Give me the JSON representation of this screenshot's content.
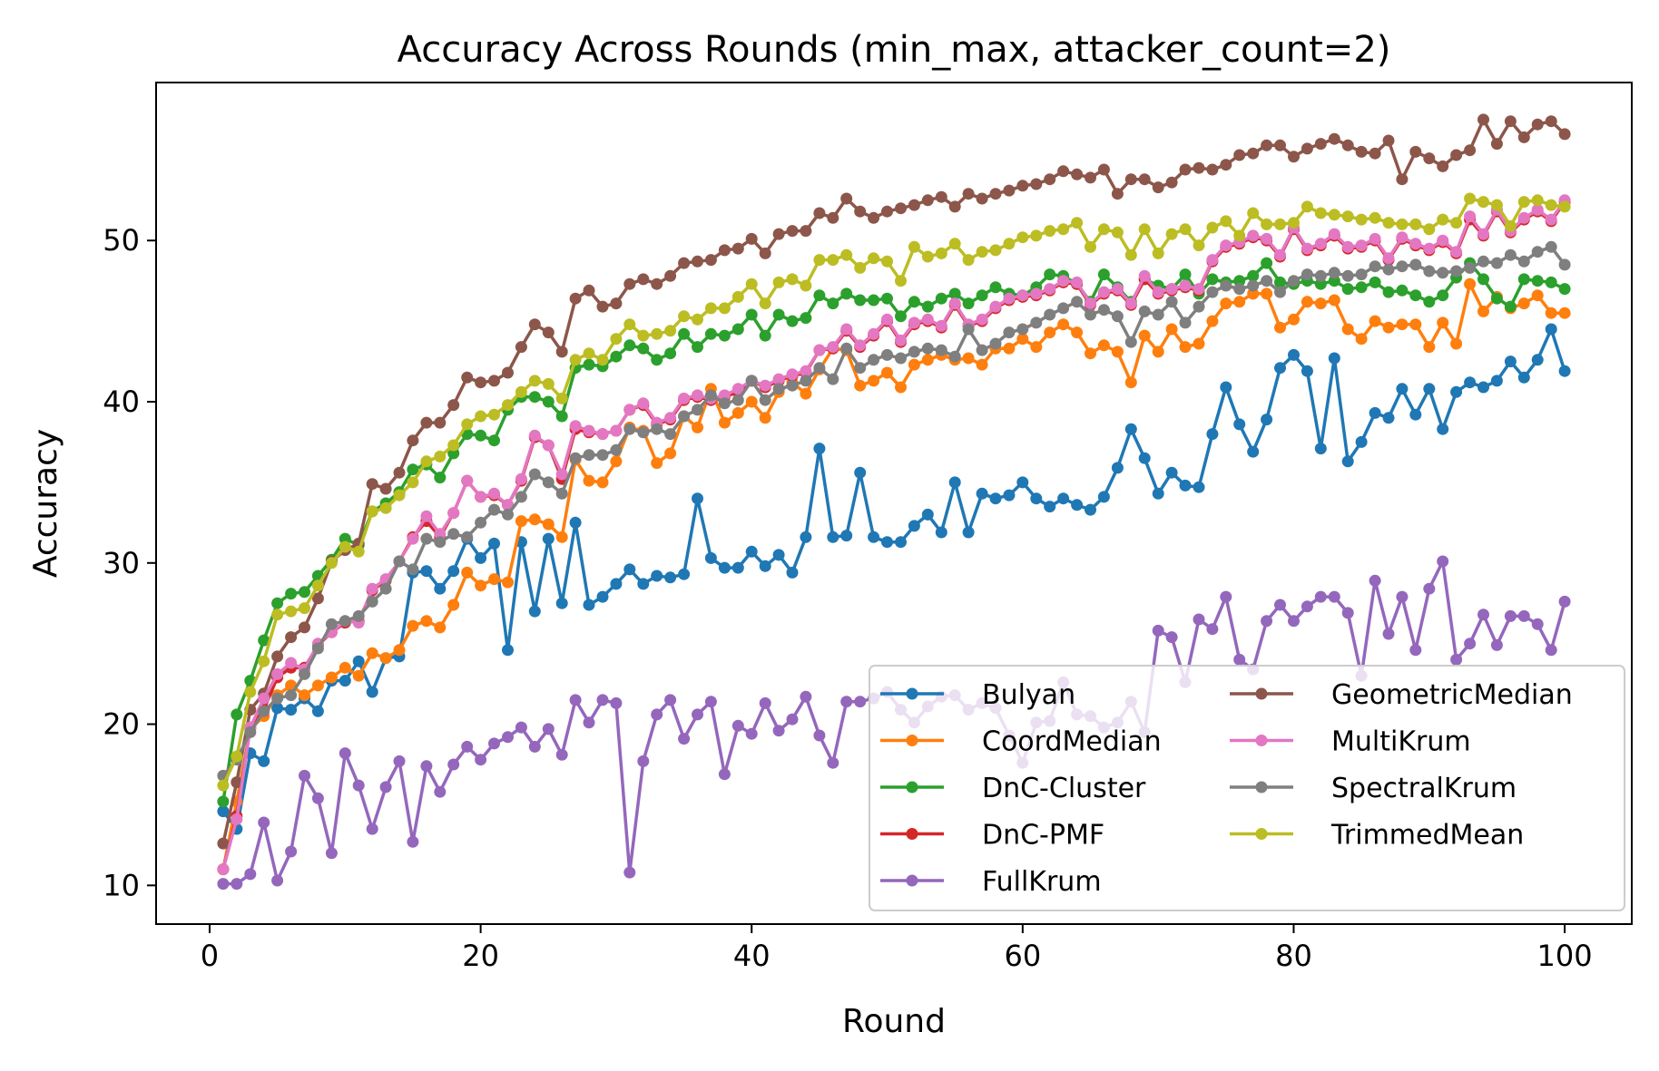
{
  "chart_data": {
    "type": "line",
    "title": "Accuracy Across Rounds (min_max, attacker_count=2)",
    "xlabel": "Round",
    "ylabel": "Accuracy",
    "xlim": [
      -3.95,
      104.95
    ],
    "ylim": [
      7.6,
      59.8
    ],
    "xticks": [
      0,
      20,
      40,
      60,
      80,
      100
    ],
    "yticks": [
      10,
      20,
      30,
      40,
      50
    ],
    "grid": false,
    "legend_position": "lower-right",
    "legend_columns": 2,
    "series": [
      {
        "name": "Bulyan",
        "color": "#1f77b4",
        "values": [
          14.6,
          13.5,
          18.2,
          17.7,
          21.0,
          20.9,
          21.6,
          20.8,
          22.7,
          22.7,
          23.9,
          22.0,
          24.1,
          24.2,
          29.4,
          29.5,
          28.4,
          29.5,
          31.5,
          30.3,
          31.2,
          24.6,
          31.3,
          27.0,
          31.5,
          27.5,
          32.5,
          27.4,
          27.9,
          28.7,
          29.6,
          28.7,
          29.2,
          29.1,
          29.3,
          34.0,
          30.3,
          29.7,
          29.7,
          30.7,
          29.8,
          30.5,
          29.4,
          31.6,
          37.1,
          31.6,
          31.7,
          35.6,
          31.6,
          31.3,
          31.3,
          32.3,
          33.0,
          31.9,
          35.0,
          31.9,
          34.3,
          34.0,
          34.2,
          35.0,
          34.0,
          33.5,
          34.0,
          33.6,
          33.3,
          34.1,
          35.9,
          38.3,
          36.5,
          34.3,
          35.6,
          34.8,
          34.7,
          38.0,
          40.9,
          38.6,
          36.9,
          38.9,
          42.1,
          42.9,
          41.9,
          37.1,
          42.7,
          36.3,
          37.5,
          39.3,
          39.0,
          40.8,
          39.2,
          40.8,
          38.3,
          40.6,
          41.2,
          40.9,
          41.3,
          42.5,
          41.5,
          42.6,
          44.5,
          41.9
        ]
      },
      {
        "name": "CoordMedian",
        "color": "#ff7f0e",
        "values": [
          11.0,
          15.2,
          19.7,
          20.5,
          21.8,
          22.4,
          21.8,
          22.4,
          22.9,
          23.5,
          23.0,
          24.4,
          24.1,
          24.6,
          26.1,
          26.4,
          26.0,
          27.4,
          29.4,
          28.6,
          29.0,
          28.8,
          32.6,
          32.7,
          32.4,
          31.6,
          36.4,
          35.1,
          35.0,
          36.3,
          38.4,
          38.2,
          36.2,
          36.8,
          39.1,
          38.4,
          40.8,
          38.7,
          39.3,
          40.0,
          39.0,
          40.6,
          41.2,
          40.5,
          42.0,
          43.3,
          43.2,
          41.0,
          41.3,
          41.8,
          40.9,
          42.3,
          42.6,
          42.9,
          42.6,
          42.7,
          42.3,
          43.3,
          43.3,
          43.9,
          43.4,
          44.3,
          44.8,
          44.3,
          43.0,
          43.5,
          43.1,
          41.2,
          44.1,
          43.1,
          44.5,
          43.4,
          43.6,
          45.0,
          46.1,
          46.2,
          46.7,
          46.7,
          44.6,
          45.1,
          46.2,
          46.1,
          46.3,
          44.5,
          43.9,
          45.0,
          44.6,
          44.8,
          44.8,
          43.4,
          44.9,
          43.6,
          47.3,
          45.6,
          46.5,
          45.8,
          46.1,
          46.6,
          45.5,
          45.5
        ]
      },
      {
        "name": "DnC-Cluster",
        "color": "#2ca02c",
        "values": [
          15.2,
          20.6,
          22.7,
          25.2,
          27.5,
          28.1,
          28.2,
          29.2,
          30.2,
          31.5,
          31.1,
          33.2,
          33.7,
          34.4,
          35.8,
          36.1,
          35.3,
          36.8,
          38.0,
          37.9,
          37.6,
          39.5,
          40.3,
          40.3,
          40.0,
          39.1,
          42.1,
          42.3,
          42.2,
          42.8,
          43.5,
          43.3,
          42.6,
          43.0,
          44.2,
          43.4,
          44.2,
          44.1,
          44.5,
          45.4,
          44.1,
          45.4,
          45.0,
          45.2,
          46.6,
          46.1,
          46.7,
          46.3,
          46.3,
          46.4,
          45.3,
          46.2,
          45.9,
          46.4,
          46.7,
          46.1,
          46.6,
          47.1,
          46.7,
          46.6,
          47.1,
          47.9,
          47.8,
          47.3,
          46.2,
          47.9,
          47.1,
          46.2,
          47.6,
          47.2,
          47.0,
          47.9,
          46.7,
          47.6,
          47.4,
          47.5,
          47.8,
          48.6,
          47.4,
          47.3,
          47.5,
          47.3,
          47.5,
          47.0,
          47.1,
          47.4,
          46.8,
          46.9,
          46.6,
          46.2,
          46.6,
          47.7,
          48.6,
          47.6,
          46.4,
          45.9,
          47.6,
          47.5,
          47.4,
          47.0
        ]
      },
      {
        "name": "DnC-PMF",
        "color": "#d62728",
        "values": [
          11.0,
          14.3,
          19.8,
          20.9,
          22.9,
          23.5,
          23.5,
          24.9,
          25.7,
          26.3,
          26.4,
          28.3,
          28.9,
          30.1,
          31.6,
          32.6,
          31.6,
          33.1,
          35.1,
          34.1,
          34.2,
          33.6,
          35.1,
          37.8,
          37.3,
          35.2,
          38.3,
          38.1,
          38.0,
          38.2,
          39.5,
          39.8,
          38.6,
          38.9,
          40.1,
          40.3,
          40.1,
          40.3,
          40.6,
          41.3,
          40.9,
          41.3,
          41.6,
          41.8,
          43.2,
          43.3,
          44.4,
          43.4,
          44.1,
          45.0,
          43.7,
          44.8,
          45.0,
          44.6,
          46.0,
          44.7,
          45.0,
          45.8,
          46.3,
          46.5,
          46.6,
          46.9,
          47.4,
          47.3,
          46.0,
          46.7,
          46.9,
          46.0,
          47.6,
          46.7,
          46.9,
          47.1,
          46.9,
          48.7,
          49.6,
          49.8,
          50.2,
          50.0,
          49.0,
          50.7,
          49.4,
          49.7,
          50.3,
          49.5,
          49.6,
          50.0,
          48.8,
          50.1,
          49.7,
          49.4,
          49.9,
          49.2,
          51.3,
          50.3,
          51.8,
          50.5,
          51.3,
          51.8,
          51.2,
          52.4
        ]
      },
      {
        "name": "FullKrum",
        "color": "#9467bd",
        "values": [
          10.1,
          10.1,
          10.7,
          13.9,
          10.3,
          12.1,
          16.8,
          15.4,
          12.0,
          18.2,
          16.2,
          13.5,
          16.1,
          17.7,
          12.7,
          17.4,
          15.8,
          17.5,
          18.6,
          17.8,
          18.8,
          19.2,
          19.8,
          18.6,
          19.7,
          18.1,
          21.5,
          20.1,
          21.5,
          21.3,
          10.8,
          17.7,
          20.6,
          21.5,
          19.1,
          20.6,
          21.4,
          16.9,
          19.9,
          19.4,
          21.3,
          19.6,
          20.3,
          21.7,
          19.3,
          17.6,
          21.4,
          21.4,
          21.6,
          22.0,
          20.9,
          20.1,
          21.1,
          21.7,
          21.8,
          20.9,
          21.3,
          21.0,
          19.3,
          17.6,
          20.1,
          20.2,
          22.6,
          20.6,
          20.5,
          19.8,
          20.1,
          21.4,
          19.5,
          25.8,
          25.4,
          22.6,
          26.5,
          25.9,
          27.9,
          24.0,
          23.4,
          26.4,
          27.4,
          26.4,
          27.3,
          27.9,
          27.9,
          26.9,
          23.0,
          28.9,
          25.6,
          27.9,
          24.6,
          28.4,
          30.1,
          24.0,
          25.0,
          26.8,
          24.9,
          26.7,
          26.7,
          26.2,
          24.6,
          27.6
        ]
      },
      {
        "name": "GeometricMedian",
        "color": "#8c564b",
        "values": [
          12.6,
          16.4,
          20.9,
          21.9,
          24.2,
          25.4,
          26.0,
          27.8,
          30.1,
          30.8,
          31.2,
          34.9,
          34.6,
          35.6,
          37.6,
          38.7,
          38.7,
          39.8,
          41.5,
          41.2,
          41.3,
          41.8,
          43.4,
          44.8,
          44.3,
          43.1,
          46.4,
          46.9,
          45.9,
          46.1,
          47.3,
          47.6,
          47.3,
          47.8,
          48.6,
          48.7,
          48.8,
          49.4,
          49.5,
          50.1,
          49.2,
          50.4,
          50.6,
          50.6,
          51.7,
          51.4,
          52.6,
          51.8,
          51.4,
          51.8,
          52.0,
          52.2,
          52.5,
          52.7,
          52.1,
          52.9,
          52.6,
          52.9,
          53.1,
          53.4,
          53.5,
          53.8,
          54.3,
          54.1,
          53.9,
          54.4,
          52.9,
          53.8,
          53.8,
          53.3,
          53.6,
          54.4,
          54.5,
          54.4,
          54.7,
          55.3,
          55.4,
          55.9,
          55.9,
          55.2,
          55.7,
          56.0,
          56.3,
          55.9,
          55.5,
          55.4,
          56.2,
          53.8,
          55.5,
          55.1,
          54.6,
          55.3,
          55.6,
          57.5,
          56.0,
          57.4,
          56.4,
          57.2,
          57.4,
          56.6
        ]
      },
      {
        "name": "MultiKrum",
        "color": "#e377c2",
        "values": [
          11.0,
          14.1,
          19.8,
          21.6,
          23.1,
          23.8,
          23.4,
          25.0,
          25.7,
          26.4,
          26.3,
          28.4,
          29.0,
          30.1,
          31.5,
          32.9,
          31.8,
          33.1,
          35.1,
          34.1,
          34.3,
          33.6,
          35.2,
          37.9,
          37.3,
          35.5,
          38.5,
          38.2,
          38.0,
          38.2,
          39.5,
          39.9,
          38.7,
          39.0,
          40.2,
          40.4,
          40.2,
          40.4,
          40.8,
          41.3,
          41.0,
          41.4,
          41.7,
          41.9,
          43.2,
          43.4,
          44.5,
          43.5,
          44.2,
          45.1,
          43.8,
          44.9,
          45.1,
          44.7,
          46.1,
          44.8,
          45.1,
          45.9,
          46.4,
          46.6,
          46.7,
          47.0,
          47.5,
          47.4,
          46.1,
          46.8,
          47.0,
          46.1,
          47.8,
          46.8,
          47.0,
          47.2,
          47.0,
          48.8,
          49.7,
          49.9,
          50.3,
          50.1,
          49.1,
          50.8,
          49.5,
          49.8,
          50.4,
          49.6,
          49.7,
          50.1,
          48.9,
          50.2,
          49.8,
          49.5,
          50.0,
          49.3,
          51.5,
          50.4,
          51.9,
          50.6,
          51.4,
          51.9,
          51.3,
          52.5
        ]
      },
      {
        "name": "SpectralKrum",
        "color": "#7f7f7f",
        "values": [
          16.8,
          17.8,
          19.5,
          20.8,
          21.6,
          21.8,
          23.1,
          24.7,
          26.2,
          26.4,
          26.7,
          27.6,
          28.4,
          30.1,
          29.6,
          31.5,
          31.3,
          31.8,
          31.6,
          32.5,
          33.3,
          33.0,
          34.1,
          35.5,
          35.0,
          34.3,
          36.5,
          36.7,
          36.7,
          37.0,
          38.3,
          38.1,
          38.3,
          38.0,
          39.1,
          39.5,
          40.4,
          39.9,
          40.1,
          41.3,
          40.1,
          40.8,
          41.0,
          41.3,
          42.1,
          41.4,
          43.3,
          42.1,
          42.6,
          42.9,
          42.7,
          43.1,
          43.3,
          43.2,
          42.8,
          44.5,
          43.2,
          43.6,
          44.3,
          44.5,
          44.9,
          45.4,
          45.8,
          46.2,
          45.4,
          45.7,
          45.3,
          43.7,
          45.6,
          45.4,
          46.2,
          44.9,
          45.9,
          46.8,
          47.2,
          47.0,
          47.2,
          47.5,
          46.8,
          47.5,
          47.9,
          47.8,
          48.0,
          47.8,
          47.9,
          48.4,
          48.2,
          48.4,
          48.5,
          48.1,
          48.0,
          48.1,
          48.3,
          48.7,
          48.6,
          49.1,
          48.7,
          49.3,
          49.6,
          48.5
        ]
      },
      {
        "name": "TrimmedMean",
        "color": "#bcbd22",
        "values": [
          16.2,
          18.0,
          22.0,
          23.9,
          26.8,
          27.0,
          27.2,
          28.6,
          30.0,
          31.0,
          30.7,
          33.2,
          33.4,
          34.2,
          35.0,
          36.3,
          36.6,
          37.3,
          38.6,
          39.1,
          39.2,
          39.8,
          40.6,
          41.3,
          41.1,
          40.2,
          42.6,
          43.0,
          42.6,
          43.9,
          44.8,
          44.1,
          44.2,
          44.4,
          45.3,
          45.1,
          45.8,
          45.8,
          46.5,
          47.3,
          46.1,
          47.4,
          47.6,
          47.2,
          48.8,
          48.8,
          49.1,
          48.3,
          48.9,
          48.7,
          47.5,
          49.6,
          49.0,
          49.2,
          49.8,
          48.8,
          49.3,
          49.4,
          49.8,
          50.2,
          50.3,
          50.6,
          50.7,
          51.1,
          49.6,
          50.7,
          50.5,
          49.1,
          50.7,
          49.2,
          50.4,
          50.7,
          49.7,
          50.8,
          51.2,
          50.3,
          51.7,
          51.0,
          51.0,
          51.1,
          52.1,
          51.7,
          51.6,
          51.5,
          51.3,
          51.4,
          51.1,
          51.0,
          51.0,
          50.7,
          51.3,
          51.1,
          52.6,
          52.4,
          52.2,
          50.9,
          52.4,
          52.5,
          52.2,
          52.1
        ]
      }
    ]
  }
}
